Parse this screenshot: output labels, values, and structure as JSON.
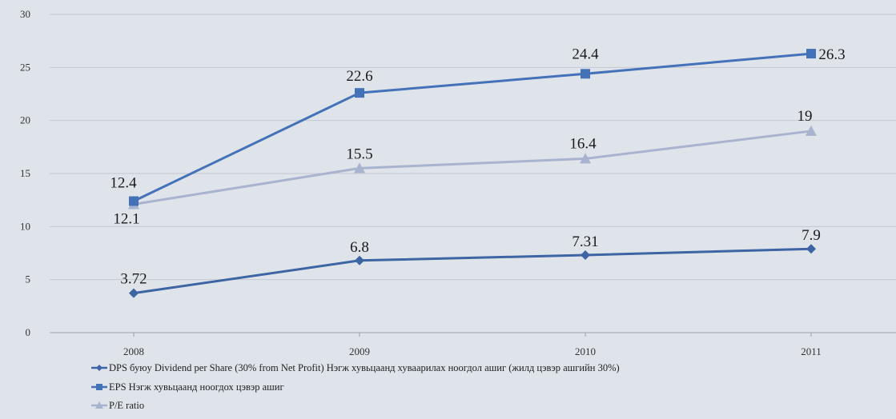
{
  "chart_data": {
    "type": "line",
    "title": "",
    "xlabel": "",
    "ylabel": "",
    "categories": [
      "2008",
      "2009",
      "2010",
      "2011"
    ],
    "ylim": [
      0,
      30
    ],
    "yticks": [
      "0",
      "5",
      "10",
      "15",
      "20",
      "25",
      "30"
    ],
    "grid": "horizontal",
    "legend_position": "bottom-left",
    "series": [
      {
        "name": "DPS буюу Dividend per Share (30% from Net Profit) Нэгж хувьцаанд хуваарилах ноогдол ашиг (жилд цэвэр ашгийн 30%)",
        "values": [
          3.72,
          6.8,
          7.31,
          7.9
        ],
        "labels": [
          "3.72",
          "6.8",
          "7.31",
          "7.9"
        ],
        "color": "#3d64a3",
        "marker": "diamond"
      },
      {
        "name": "EPS Нэгж хувьцаанд ноогдох цэвэр ашиг",
        "values": [
          12.4,
          22.6,
          24.4,
          26.3
        ],
        "labels": [
          "12.4",
          "22.6",
          "24.4",
          "26.3"
        ],
        "color": "#4472b8",
        "marker": "square"
      },
      {
        "name": "P/E ratio",
        "values": [
          12.1,
          15.5,
          16.4,
          19
        ],
        "labels": [
          "12.1",
          "15.5",
          "16.4",
          "19"
        ],
        "color": "#a8b4cf",
        "marker": "triangle"
      }
    ]
  }
}
